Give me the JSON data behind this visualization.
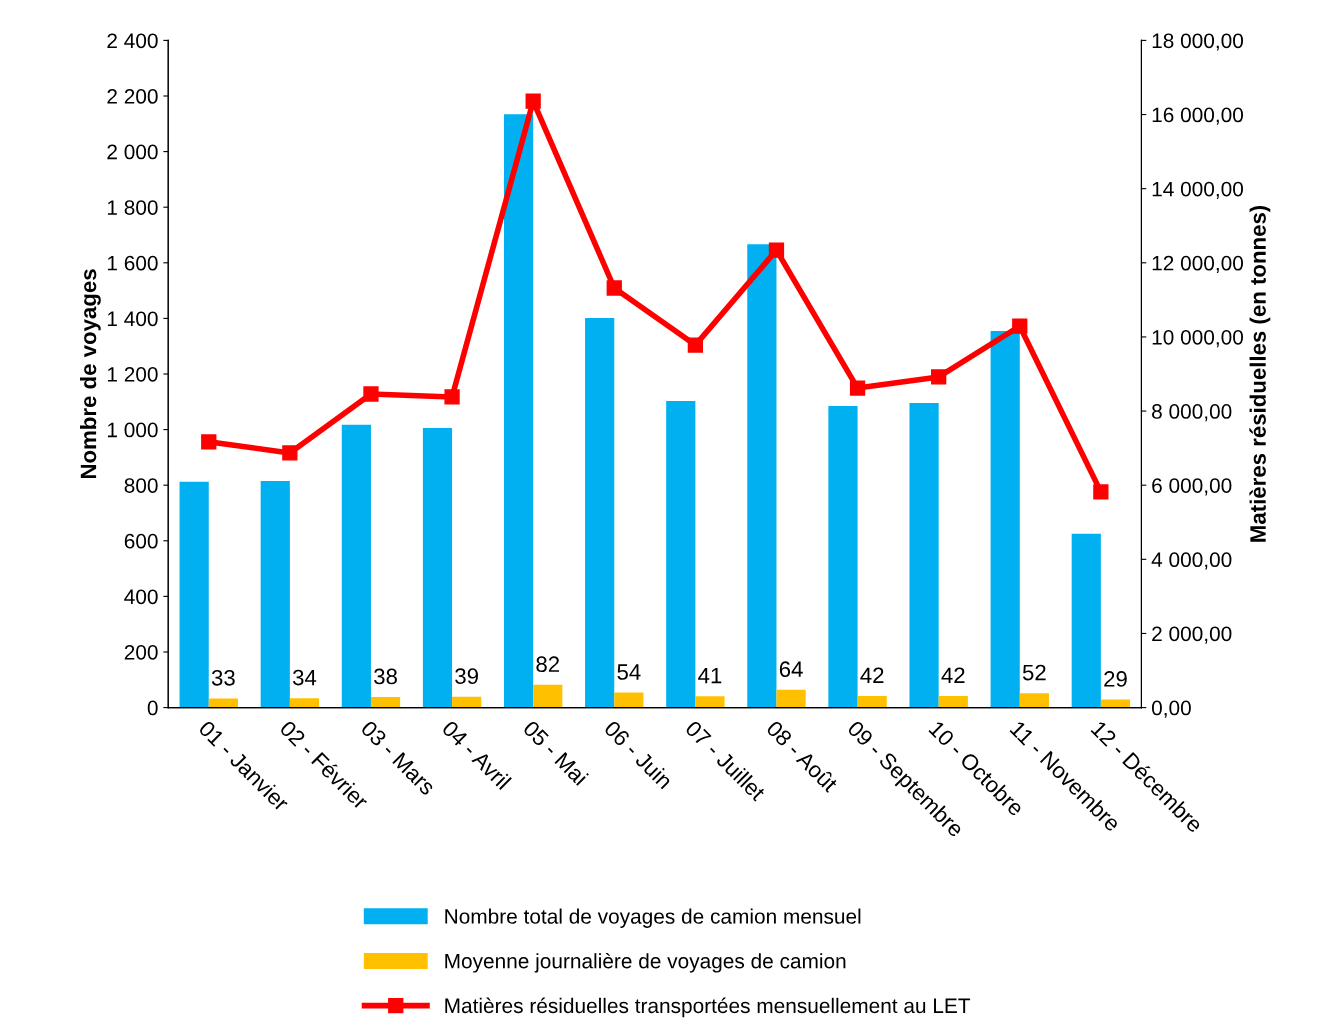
{
  "chart_data": {
    "type": "bar",
    "ylabel": "Nombre de voyages",
    "y2label": "Matières résiduelles (en tonnes)",
    "categories": [
      "01 - Janvier",
      "02 - Février",
      "03 - Mars",
      "04 - Avril",
      "05 - Mai",
      "06 - Juin",
      "07 - Juillet",
      "08 - Août",
      "09 - Septembre",
      "10 - Octobre",
      "11 - Novembre",
      "12 - Décembre"
    ],
    "series": [
      {
        "name": "Nombre total de voyages de camion mensuel",
        "color": "#00b0f0",
        "values": [
          812,
          815,
          1017,
          1006,
          2134,
          1401,
          1103,
          1667,
          1085,
          1096,
          1355,
          625
        ]
      },
      {
        "name": "Moyenne journalière de voyages de camion",
        "color": "#ffc000",
        "values": [
          33,
          34,
          38,
          39,
          82,
          54,
          41,
          64,
          42,
          42,
          52,
          29
        ],
        "value_labels": [
          "33",
          "34",
          "38",
          "39",
          "82",
          "54",
          "41",
          "64",
          "42",
          "42",
          "52",
          "29"
        ]
      },
      {
        "name": "Matières résiduelles transportées mensuellement au LET",
        "color": "#ff0000",
        "type": "line",
        "axis": "y2",
        "marker": "square",
        "values": [
          7170,
          6870,
          8460,
          8380,
          16360,
          11320,
          9780,
          12340,
          8620,
          8920,
          10290,
          5820
        ]
      }
    ],
    "ylim": [
      0,
      2400
    ],
    "yticks": [
      {
        "value": 0,
        "label": "0"
      },
      {
        "value": 200,
        "label": "200"
      },
      {
        "value": 400,
        "label": "400"
      },
      {
        "value": 600,
        "label": "600"
      },
      {
        "value": 800,
        "label": "800"
      },
      {
        "value": 1000,
        "label": "1 000"
      },
      {
        "value": 1200,
        "label": "1 200"
      },
      {
        "value": 1400,
        "label": "1 400"
      },
      {
        "value": 1600,
        "label": "1 600"
      },
      {
        "value": 1800,
        "label": "1 800"
      },
      {
        "value": 2000,
        "label": "2 000"
      },
      {
        "value": 2200,
        "label": "2 200"
      },
      {
        "value": 2400,
        "label": "2 400"
      }
    ],
    "y2lim": [
      0,
      18000
    ],
    "y2ticks": [
      {
        "value": 0,
        "label": "0,00"
      },
      {
        "value": 2000,
        "label": "2 000,00"
      },
      {
        "value": 4000,
        "label": "4 000,00"
      },
      {
        "value": 6000,
        "label": "6 000,00"
      },
      {
        "value": 8000,
        "label": "8 000,00"
      },
      {
        "value": 10000,
        "label": "10 000,00"
      },
      {
        "value": 12000,
        "label": "12 000,00"
      },
      {
        "value": 14000,
        "label": "14 000,00"
      },
      {
        "value": 16000,
        "label": "16 000,00"
      },
      {
        "value": 18000,
        "label": "18 000,00"
      }
    ],
    "grid": false,
    "legend": "bottom"
  }
}
